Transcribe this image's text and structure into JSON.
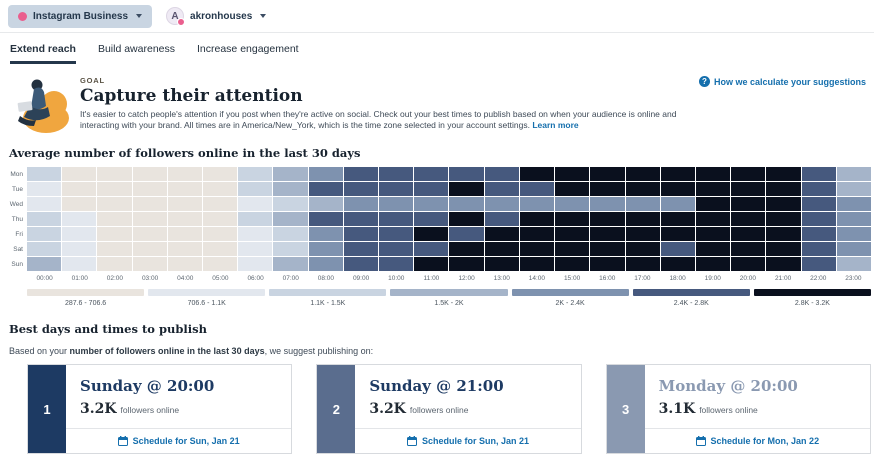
{
  "topbar": {
    "network_label": "Instagram Business",
    "profile_name": "akronhouses",
    "avatar_letter": "A",
    "accent_pink": "#ea5f8e"
  },
  "tabs": [
    {
      "label": "Extend reach",
      "active": true
    },
    {
      "label": "Build awareness",
      "active": false
    },
    {
      "label": "Increase engagement",
      "active": false
    }
  ],
  "goal": {
    "eyebrow": "GOAL",
    "title": "Capture their attention",
    "description": "It's easier to catch people's attention if you post when they're active on social. Check out your best times to publish based on when your audience is online and interacting with your brand. All times are in America/New_York, which is the time zone selected in your account settings.",
    "learn_more": "Learn more",
    "help_link": "How we calculate your suggestions"
  },
  "chart_data": {
    "type": "heatmap",
    "title": "Average number of followers online in the last 30 days",
    "rows": [
      "Mon",
      "Tue",
      "Wed",
      "Thu",
      "Fri",
      "Sat",
      "Sun"
    ],
    "columns": [
      "00:00",
      "01:00",
      "02:00",
      "03:00",
      "04:00",
      "05:00",
      "06:00",
      "07:00",
      "08:00",
      "09:00",
      "10:00",
      "11:00",
      "12:00",
      "13:00",
      "14:00",
      "15:00",
      "16:00",
      "17:00",
      "18:00",
      "19:00",
      "20:00",
      "21:00",
      "22:00",
      "23:00"
    ],
    "legend": [
      {
        "label": "287.6 - 706.6",
        "color": "#e9e4de"
      },
      {
        "label": "706.6 - 1.1K",
        "color": "#e2e7ee"
      },
      {
        "label": "1.1K - 1.5K",
        "color": "#c9d4e1"
      },
      {
        "label": "1.5K - 2K",
        "color": "#a5b4c9"
      },
      {
        "label": "2K - 2.4K",
        "color": "#7e92af"
      },
      {
        "label": "2.4K - 2.8K",
        "color": "#46597e"
      },
      {
        "label": "2.8K - 3.2K",
        "color": "#0a101e"
      }
    ],
    "values_note": "bucket index 1-7 into legend ranges",
    "values": [
      [
        3,
        1,
        1,
        1,
        1,
        1,
        3,
        4,
        5,
        6,
        6,
        6,
        6,
        6,
        7,
        7,
        7,
        7,
        7,
        7,
        7,
        7,
        6,
        4
      ],
      [
        2,
        1,
        1,
        1,
        1,
        1,
        3,
        4,
        6,
        6,
        6,
        6,
        7,
        6,
        6,
        7,
        7,
        7,
        7,
        7,
        7,
        7,
        6,
        4
      ],
      [
        2,
        1,
        1,
        1,
        1,
        1,
        2,
        3,
        4,
        5,
        5,
        5,
        5,
        5,
        5,
        5,
        5,
        5,
        5,
        7,
        7,
        7,
        6,
        5
      ],
      [
        3,
        2,
        1,
        1,
        1,
        1,
        3,
        4,
        6,
        6,
        6,
        6,
        7,
        6,
        7,
        7,
        7,
        7,
        7,
        7,
        7,
        7,
        6,
        5
      ],
      [
        3,
        2,
        1,
        1,
        1,
        1,
        2,
        3,
        5,
        6,
        6,
        7,
        6,
        7,
        7,
        7,
        7,
        7,
        7,
        7,
        7,
        7,
        6,
        5
      ],
      [
        3,
        2,
        1,
        1,
        1,
        1,
        2,
        3,
        5,
        6,
        6,
        6,
        7,
        7,
        7,
        7,
        7,
        7,
        6,
        7,
        7,
        7,
        6,
        5
      ],
      [
        4,
        2,
        1,
        1,
        1,
        1,
        2,
        4,
        5,
        6,
        6,
        7,
        7,
        7,
        7,
        7,
        7,
        7,
        7,
        7,
        7,
        7,
        6,
        4
      ]
    ]
  },
  "suggestions": {
    "heading": "Best days and times to publish",
    "intro_prefix": "Based on your ",
    "intro_bold": "number of followers online in the last 30 days",
    "intro_suffix": ", we suggest publishing on:",
    "cards": [
      {
        "rank": "1",
        "title": "Sunday @ 20:00",
        "value": "3.2K",
        "value_suffix": "followers online",
        "cta": "Schedule for Sun, Jan 21",
        "rank_color": "#1d3a63",
        "title_color": "#1d3a63"
      },
      {
        "rank": "2",
        "title": "Sunday @ 21:00",
        "value": "3.2K",
        "value_suffix": "followers online",
        "cta": "Schedule for Sun, Jan 21",
        "rank_color": "#5a6d8e",
        "title_color": "#1d3a63"
      },
      {
        "rank": "3",
        "title": "Monday @ 20:00",
        "value": "3.1K",
        "value_suffix": "followers online",
        "cta": "Schedule for Mon, Jan 22",
        "rank_color": "#8a99b1",
        "title_color": "#8a99b1"
      }
    ]
  }
}
